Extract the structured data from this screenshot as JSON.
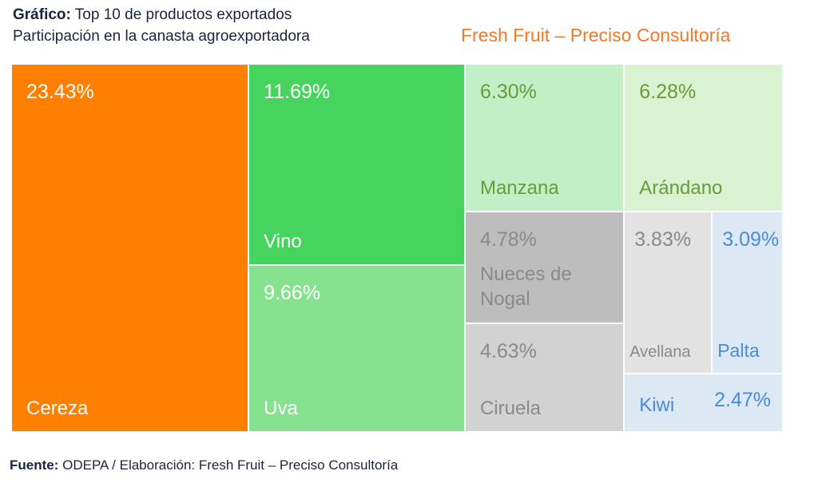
{
  "header": {
    "title_lead": "Gráfico:",
    "title": "Top 10 de productos exportados",
    "subtitle": "Participación en la canasta agroexportadora",
    "brand": "Fresh Fruit – Preciso Consultoría"
  },
  "chart_data": {
    "type": "treemap",
    "categories": [
      "Cereza",
      "Vino",
      "Uva",
      "Manzana",
      "Arándano",
      "Nueces de Nogal",
      "Ciruela",
      "Avellana",
      "Palta",
      "Kiwi"
    ],
    "values": [
      23.43,
      11.69,
      9.66,
      6.3,
      6.28,
      4.78,
      4.63,
      3.83,
      3.09,
      2.47
    ],
    "value_labels": [
      "23.43%",
      "11.69%",
      "9.66%",
      "6.30%",
      "6.28%",
      "4.78%",
      "4.63%",
      "3.83%",
      "3.09%",
      "2.47%"
    ],
    "colors": [
      "#ff7f00",
      "#47d45e",
      "#86e28f",
      "#c1efc6",
      "#d9f2d1",
      "#bdbdbd",
      "#d2d2d2",
      "#e2e2e2",
      "#dce9f5",
      "#dce9f5"
    ],
    "label_colors": [
      "#ffffff",
      "#ffffff",
      "#ffffff",
      "#6a9a3a",
      "#6a9a3a",
      "#8a8a8a",
      "#8a8a8a",
      "#8a8a8a",
      "#4a8ad6",
      "#4a8ad6"
    ]
  },
  "footer": {
    "lead": "Fuente:",
    "text": "ODEPA / Elaboración: Fresh Fruit – Preciso Consultoría"
  }
}
